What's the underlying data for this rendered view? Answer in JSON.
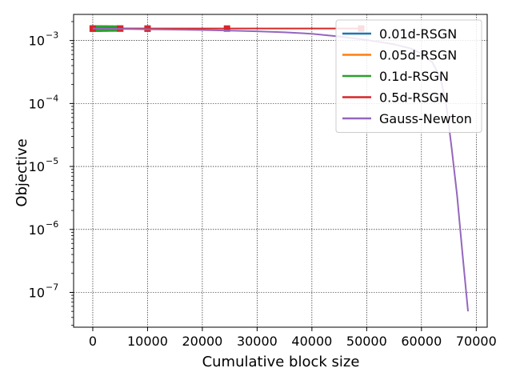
{
  "chart_data": {
    "type": "line",
    "xlabel": "Cumulative block size",
    "ylabel": "Objective",
    "x_ticks": [
      0,
      10000,
      20000,
      30000,
      40000,
      50000,
      60000,
      70000
    ],
    "x_tick_labels": [
      "0",
      "10000",
      "20000",
      "30000",
      "40000",
      "50000",
      "60000",
      "70000"
    ],
    "xlim": [
      -3500,
      72000
    ],
    "y_scale": "log",
    "ylim": [
      2.8e-08,
      0.0026
    ],
    "y_ticks": [
      {
        "value": 1e-07,
        "base": "10",
        "exp": "−7"
      },
      {
        "value": 1e-06,
        "base": "10",
        "exp": "−6"
      },
      {
        "value": 1e-05,
        "base": "10",
        "exp": "−5"
      },
      {
        "value": 0.0001,
        "base": "10",
        "exp": "−4"
      },
      {
        "value": 0.001,
        "base": "10",
        "exp": "−3"
      }
    ],
    "grid": true,
    "legend_position": "top-right",
    "series": [
      {
        "name": "0.01d-RSGN",
        "color": "#1f77b4",
        "marker": "square",
        "x": [
          0,
          100,
          200,
          300,
          400,
          500,
          600,
          700,
          800,
          900,
          1000,
          1100,
          1200
        ],
        "y": [
          0.00155,
          0.00155,
          0.00155,
          0.00155,
          0.00155,
          0.00155,
          0.00155,
          0.00155,
          0.00155,
          0.00155,
          0.00155,
          0.00155,
          0.00155
        ]
      },
      {
        "name": "0.05d-RSGN",
        "color": "#ff7f0e",
        "marker": "square",
        "x": [
          0,
          500,
          1000,
          1500,
          2000,
          2500
        ],
        "y": [
          0.00155,
          0.00155,
          0.00155,
          0.00155,
          0.00155,
          0.00155
        ]
      },
      {
        "name": "0.1d-RSGN",
        "color": "#2ca02c",
        "marker": "square",
        "x": [
          0,
          1000,
          2000,
          3000,
          4000,
          5000,
          10000
        ],
        "y": [
          0.00155,
          0.00155,
          0.00155,
          0.00155,
          0.00155,
          0.00155,
          0.00154
        ]
      },
      {
        "name": "0.5d-RSGN",
        "color": "#d62728",
        "marker": "square",
        "x": [
          0,
          5000,
          10000,
          24500,
          49000
        ],
        "y": [
          0.00155,
          0.00155,
          0.00155,
          0.00155,
          0.00155
        ]
      },
      {
        "name": "Gauss-Newton",
        "color": "#9467bd",
        "marker": "none",
        "x": [
          0,
          5000,
          10000,
          15000,
          20000,
          25000,
          30000,
          35000,
          40000,
          45000,
          49000,
          52000,
          55000,
          58000,
          60000,
          62000,
          63500,
          64500,
          65500,
          66500,
          67500,
          68500
        ],
        "y": [
          0.00155,
          0.00153,
          0.00151,
          0.00149,
          0.00147,
          0.00144,
          0.0014,
          0.00135,
          0.00128,
          0.00116,
          0.00105,
          0.00096,
          0.00087,
          0.00075,
          0.00062,
          0.00045,
          0.00025,
          0.0001,
          2e-05,
          3.5e-06,
          4e-07,
          5e-08
        ]
      }
    ]
  }
}
